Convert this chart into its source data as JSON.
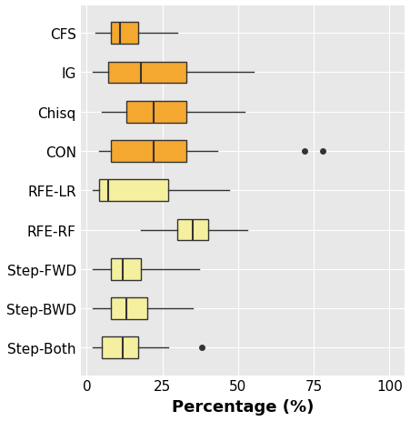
{
  "categories": [
    "CFS",
    "IG",
    "Chisq",
    "CON",
    "RFE-LR",
    "RFE-RF",
    "Step-FWD",
    "Step-BWD",
    "Step-Both"
  ],
  "box_stats": {
    "CFS": {
      "whislo": 3,
      "q1": 8,
      "med": 11,
      "q3": 17,
      "whishi": 30,
      "fliers": []
    },
    "IG": {
      "whislo": 2,
      "q1": 7,
      "med": 18,
      "q3": 33,
      "whishi": 55,
      "fliers": []
    },
    "Chisq": {
      "whislo": 5,
      "q1": 13,
      "med": 22,
      "q3": 33,
      "whishi": 52,
      "fliers": []
    },
    "CON": {
      "whislo": 4,
      "q1": 8,
      "med": 22,
      "q3": 33,
      "whishi": 43,
      "fliers": [
        72,
        78
      ]
    },
    "RFE-LR": {
      "whislo": 2,
      "q1": 4,
      "med": 7,
      "q3": 27,
      "whishi": 47,
      "fliers": []
    },
    "RFE-RF": {
      "whislo": 18,
      "q1": 30,
      "med": 35,
      "q3": 40,
      "whishi": 53,
      "fliers": []
    },
    "Step-FWD": {
      "whislo": 2,
      "q1": 8,
      "med": 12,
      "q3": 18,
      "whishi": 37,
      "fliers": []
    },
    "Step-BWD": {
      "whislo": 2,
      "q1": 8,
      "med": 13,
      "q3": 20,
      "whishi": 35,
      "fliers": []
    },
    "Step-Both": {
      "whislo": 2,
      "q1": 5,
      "med": 12,
      "q3": 17,
      "whishi": 27,
      "fliers": [
        38
      ]
    }
  },
  "colors": {
    "CFS": "#F5A830",
    "IG": "#F5A830",
    "Chisq": "#F5A830",
    "CON": "#F5A830",
    "RFE-LR": "#F5F0A0",
    "RFE-RF": "#F5F0A0",
    "Step-FWD": "#F5F0A0",
    "Step-BWD": "#F5F0A0",
    "Step-Both": "#F5F0A0"
  },
  "edge_color": "#333333",
  "flier_color": "#333333",
  "background_color": "#E8E8E8",
  "grid_color": "#FFFFFF",
  "xlabel": "Percentage (%)",
  "xlabel_fontsize": 13,
  "tick_fontsize": 11,
  "xlim": [
    -2,
    105
  ],
  "xticks": [
    0,
    25,
    50,
    75,
    100
  ]
}
